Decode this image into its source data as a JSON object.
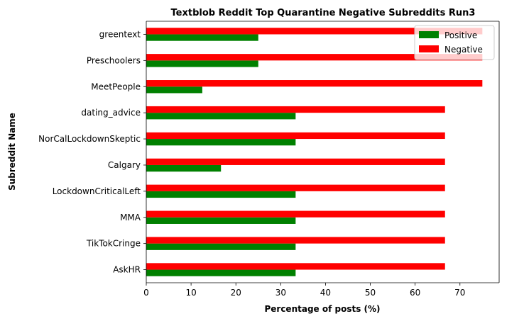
{
  "chart_data": {
    "type": "bar",
    "orientation": "horizontal",
    "title": "Textblob Reddit Top Quarantine Negative Subreddits Run3",
    "xlabel": "Percentage of posts (%)",
    "ylabel": "Subreddit Name",
    "xlim": [
      0,
      78.75
    ],
    "xticks": [
      0,
      10,
      20,
      30,
      40,
      50,
      60,
      70
    ],
    "categories": [
      "AskHR",
      "TikTokCringe",
      "MMA",
      "LockdownCriticalLeft",
      "Calgary",
      "NorCalLockdownSkeptic",
      "dating_advice",
      "MeetPeople",
      "Preschoolers",
      "greentext"
    ],
    "series": [
      {
        "name": "Positive",
        "color": "#008000",
        "values": [
          33.33,
          33.33,
          33.33,
          33.33,
          16.67,
          33.33,
          33.33,
          12.5,
          25.0,
          25.0
        ]
      },
      {
        "name": "Negative",
        "color": "#ff0000",
        "values": [
          66.67,
          66.67,
          66.67,
          66.67,
          66.67,
          66.67,
          66.67,
          75.0,
          75.0,
          75.0
        ]
      }
    ],
    "grid": false,
    "legend_position": "top-right"
  }
}
